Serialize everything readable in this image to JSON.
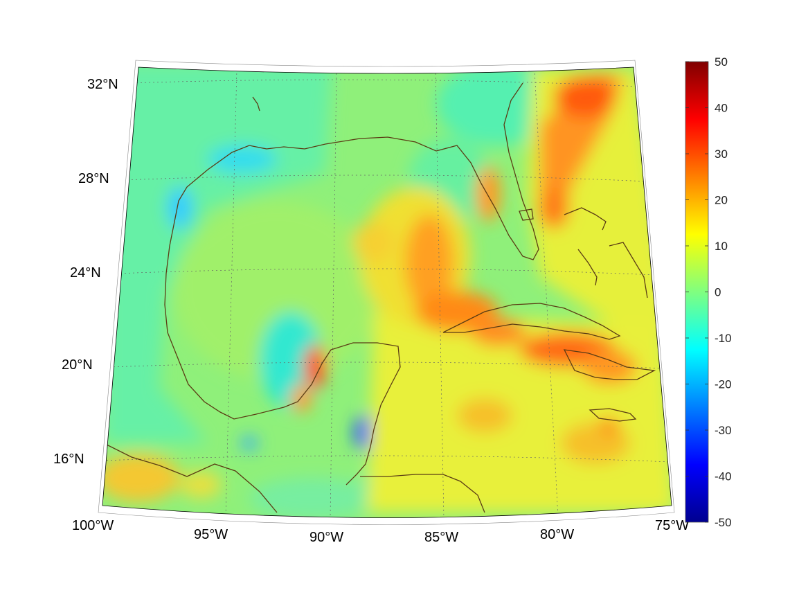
{
  "map": {
    "region": "Gulf of Mexico and Caribbean",
    "projection": "conic",
    "lon_range": [
      -100,
      -75
    ],
    "lat_range": [
      14,
      33
    ],
    "lat_labels": [
      "32°N",
      "28°N",
      "24°N",
      "20°N",
      "16°N"
    ],
    "lon_labels": [
      "100°W",
      "95°W",
      "90°W",
      "85°W",
      "80°W",
      "75°W"
    ],
    "grid": true,
    "colormap": "jet",
    "coastline_color": "#5a3c14"
  },
  "colorbar": {
    "min": -50,
    "max": 50,
    "tick_labels": [
      "50",
      "40",
      "30",
      "20",
      "10",
      "0",
      "-10",
      "-20",
      "-30",
      "-40",
      "-50"
    ]
  }
}
